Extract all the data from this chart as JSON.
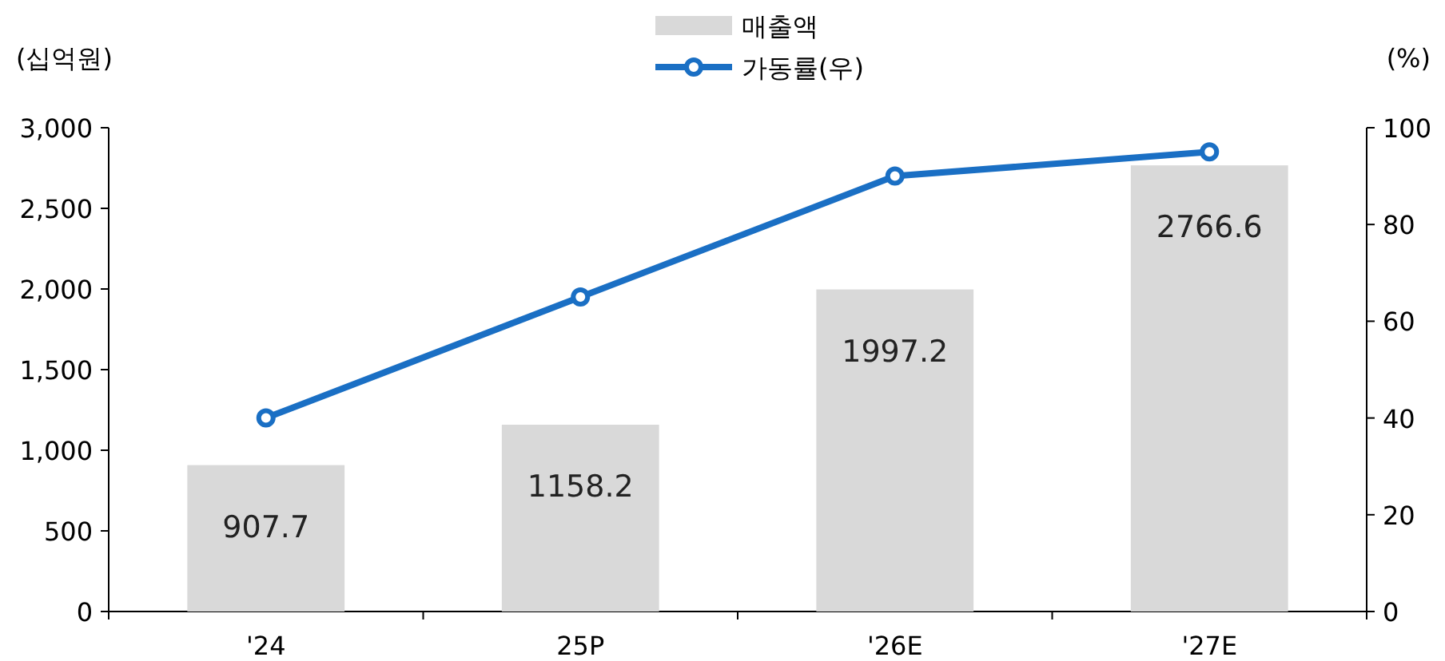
{
  "chart_data": {
    "type": "bar",
    "ylabel": "(십억원)",
    "y2label": "(%)",
    "categories": [
      "'24",
      "25P",
      "'26E",
      "'27E"
    ],
    "series": [
      {
        "name": "매출액",
        "color": "#d9d9d9",
        "values": [
          907.7,
          1158.2,
          1997.2,
          2766.6
        ],
        "value_labels": [
          "907.7",
          "1158.2",
          "1997.2",
          "2766.6"
        ]
      },
      {
        "name": "가동률(우)",
        "type": "line",
        "axis": "y2",
        "color": "#1a6fc4",
        "marker": "circle",
        "values": [
          40,
          65,
          90,
          95
        ]
      }
    ],
    "ylim": [
      0,
      3000
    ],
    "yticks": [
      {
        "value": 0,
        "label": "0"
      },
      {
        "value": 500,
        "label": "500"
      },
      {
        "value": 1000,
        "label": "1,000"
      },
      {
        "value": 1500,
        "label": "1,500"
      },
      {
        "value": 2000,
        "label": "2,000"
      },
      {
        "value": 2500,
        "label": "2,500"
      },
      {
        "value": 3000,
        "label": "3,000"
      }
    ],
    "y2lim": [
      0,
      100
    ],
    "y2ticks": [
      0,
      20,
      40,
      60,
      80,
      100
    ],
    "legend": "top"
  }
}
